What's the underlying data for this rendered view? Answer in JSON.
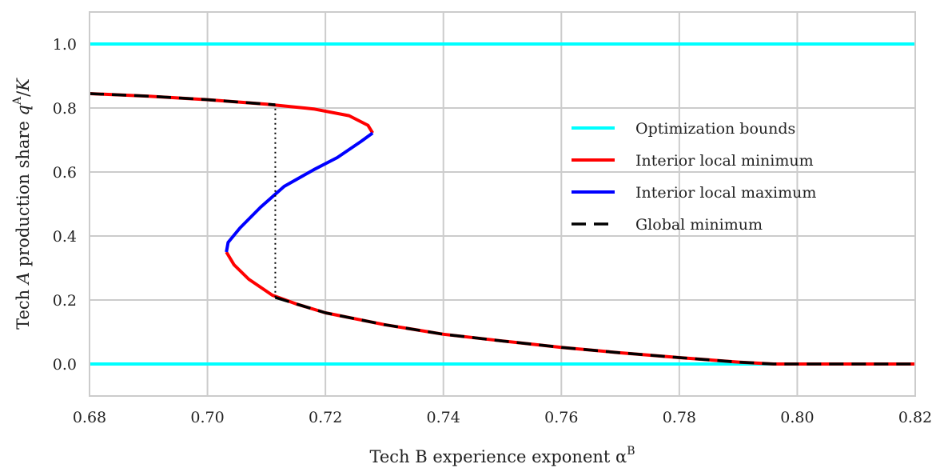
{
  "chart_data": {
    "type": "line",
    "xlabel": "Tech B experience exponent α",
    "xlabel_sup": "B",
    "ylabel_parts": [
      "Tech ",
      "A",
      " production share ",
      "q",
      "A",
      "/",
      "K"
    ],
    "xlim": [
      0.68,
      0.82
    ],
    "ylim": [
      -0.1,
      1.1
    ],
    "xticks": [
      0.68,
      0.7,
      0.72,
      0.74,
      0.76,
      0.78,
      0.8,
      0.82
    ],
    "xtick_labels": [
      "0.68",
      "0.70",
      "0.72",
      "0.74",
      "0.76",
      "0.78",
      "0.80",
      "0.82"
    ],
    "yticks": [
      0.0,
      0.2,
      0.4,
      0.6,
      0.8,
      1.0
    ],
    "ytick_labels": [
      "0.0",
      "0.2",
      "0.4",
      "0.6",
      "0.8",
      "1.0"
    ],
    "grid": true,
    "legend_position": "right",
    "series": [
      {
        "name": "Optimization bounds",
        "color": "#00ffff",
        "style": "solid",
        "segments": [
          {
            "x": [
              0.68,
              0.82
            ],
            "y": [
              0.0,
              0.0
            ]
          },
          {
            "x": [
              0.68,
              0.82
            ],
            "y": [
              1.0,
              1.0
            ]
          }
        ]
      },
      {
        "name": "Interior local minimum",
        "color": "#ff0000",
        "style": "solid",
        "segments": [
          {
            "x": [
              0.68,
              0.69,
              0.7,
              0.71,
              0.718,
              0.724,
              0.7272,
              0.728
            ],
            "y": [
              0.845,
              0.837,
              0.826,
              0.812,
              0.797,
              0.776,
              0.746,
              0.722
            ]
          },
          {
            "x": [
              0.7032,
              0.7045,
              0.707,
              0.711,
              0.715,
              0.72,
              0.73,
              0.74,
              0.75,
              0.76,
              0.77,
              0.78,
              0.79,
              0.796,
              0.82
            ],
            "y": [
              0.35,
              0.31,
              0.265,
              0.215,
              0.188,
              0.16,
              0.123,
              0.093,
              0.072,
              0.052,
              0.035,
              0.02,
              0.006,
              0.0,
              0.0
            ]
          }
        ]
      },
      {
        "name": "Interior local maximum",
        "color": "#0000ff",
        "style": "solid",
        "segments": [
          {
            "x": [
              0.728,
              0.726,
              0.722,
              0.718,
              0.713,
              0.709,
              0.7055,
              0.7035,
              0.7032
            ],
            "y": [
              0.722,
              0.695,
              0.645,
              0.607,
              0.555,
              0.49,
              0.425,
              0.38,
              0.35
            ]
          }
        ]
      },
      {
        "name": "Global minimum",
        "color": "#000000",
        "style": "dashed",
        "segments": [
          {
            "x": [
              0.68,
              0.69,
              0.7,
              0.7115
            ],
            "y": [
              0.845,
              0.837,
              0.826,
              0.81
            ]
          },
          {
            "x": [
              0.7115,
              0.715,
              0.72,
              0.73,
              0.74,
              0.75,
              0.76,
              0.77,
              0.78,
              0.79,
              0.796,
              0.82
            ],
            "y": [
              0.208,
              0.188,
              0.16,
              0.123,
              0.093,
              0.072,
              0.052,
              0.035,
              0.02,
              0.006,
              0.0,
              0.0
            ]
          }
        ]
      }
    ],
    "annotations": [
      {
        "type": "vertical-dotted-line",
        "x": 0.7115,
        "y_from": 0.208,
        "y_to": 0.81,
        "color": "#000000"
      }
    ]
  }
}
